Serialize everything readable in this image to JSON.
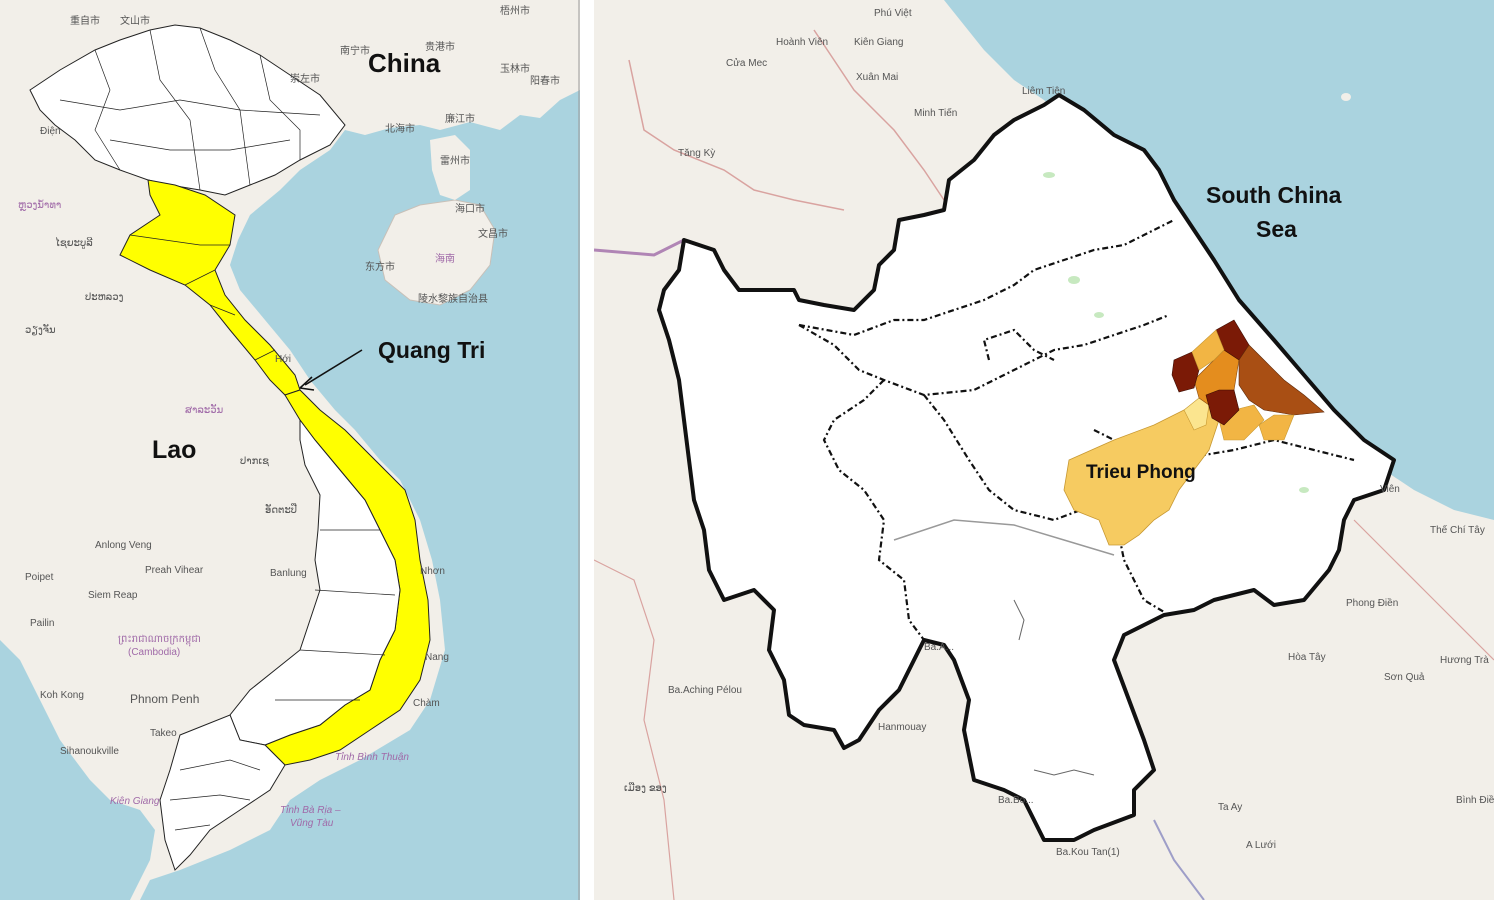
{
  "left_map": {
    "labels": {
      "china": "China",
      "lao": "Lao",
      "quang_tri": "Quang Tri"
    },
    "basemap_labels": [
      "重自市",
      "文山市",
      "南宁市",
      "贵港市",
      "梧州市",
      "崇左市",
      "玉林市",
      "北海市",
      "廉江市",
      "阳春市",
      "雷州市",
      "海口市",
      "文昌市",
      "东方市",
      "海南",
      "陵水黎族自治县",
      "Điện",
      "ຫຼວງນໍ້າທາ",
      "ໄຊຍະບູລີ",
      "ປະຫລວງ",
      "ວຽງຈັນ",
      "Hới",
      "ສາລະວັນ",
      "ປາກເຊ",
      "ອັດຕະປື",
      "Anlong Veng",
      "Preah Vihear",
      "Poipet",
      "Siem Reap",
      "Pailin",
      "Banlung",
      "ព្រះរាជាណាចក្រកម្ពុជា",
      "(Cambodia)",
      "Koh Kong",
      "Phnom Penh",
      "Sihanoukville",
      "Takeo",
      "Kiên Giang",
      "Tỉnh Bình Thuận",
      "Tỉnh Bà Rịa –",
      "Vũng Tàu",
      "Nhơn",
      "Nang",
      "Chàm"
    ],
    "colors": {
      "highlight": "#ffff00",
      "province": "#ffffff",
      "sea": "#aad3df",
      "land": "#f2efe9"
    }
  },
  "right_map": {
    "labels": {
      "sea_line1": "South China",
      "sea_line2": "Sea",
      "district": "Trieu Phong"
    },
    "basemap_labels": [
      "Phú Việt",
      "Hoành Viên",
      "Kiên Giang",
      "Cửa Mec",
      "Xuân Mai",
      "Minh Tiến",
      "Liêm Tiên",
      "Tăng Kỳ",
      "Viên",
      "Thế Chí Tây",
      "Phong Điền",
      "Hòa Tây",
      "Hương Trà",
      "Sơn Quả",
      "Ba.Aching Pélou",
      "Ba.A...",
      "Ba.Bo...",
      "Ba.Kou Tan(1)",
      "Ta Ay",
      "A Lưới",
      "Bình Điền",
      "Hanmouay",
      "ເມືອງ ຂອງ"
    ],
    "choropleth_colors": [
      "#7b1a06",
      "#a94f14",
      "#e48d1e",
      "#f2b544",
      "#f6cb61",
      "#fbe58f"
    ]
  }
}
